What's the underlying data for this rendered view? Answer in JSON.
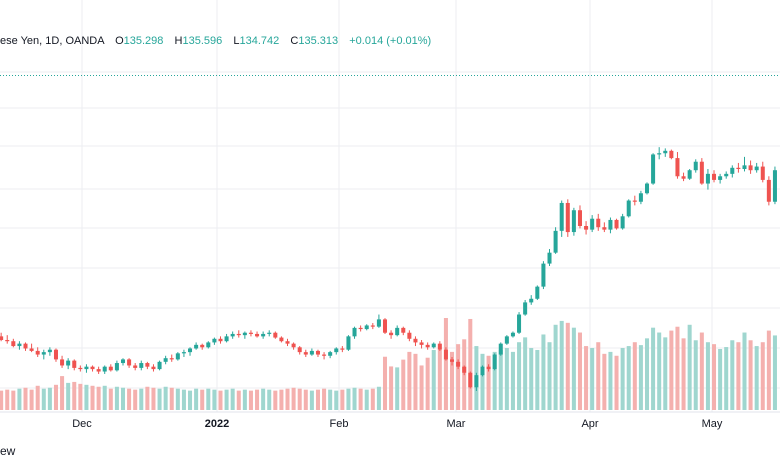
{
  "header": {
    "symbol": "ese Yen, 1D, OANDA",
    "open_label": "O",
    "open": "135.298",
    "high_label": "H",
    "high": "135.596",
    "low_label": "L",
    "low": "134.742",
    "close_label": "C",
    "close": "135.313",
    "change": "+0.014 (+0.01%)"
  },
  "footer": {
    "partial_text": "ew"
  },
  "colors": {
    "up": "#26a69a",
    "down": "#ef5350",
    "up_volume": "#9fd6cf",
    "down_volume": "#f4b0ae",
    "last_price_line": "#26a69a",
    "grid": "#eceef2"
  },
  "chart_data": {
    "type": "candlestick",
    "title": "",
    "symbol_partial": "ese Yen",
    "interval": "1D",
    "source": "OANDA",
    "x_tick_labels": [
      "Dec",
      "2022",
      "Feb",
      "Mar",
      "Apr",
      "May"
    ],
    "last_close": 135.313,
    "ylim": [
      113.5,
      137.0
    ],
    "grid": true,
    "series_ohlc_volume": [
      [
        114.0,
        114.2,
        113.6,
        113.8,
        22
      ],
      [
        113.8,
        114.1,
        113.4,
        113.5,
        20
      ],
      [
        113.5,
        113.9,
        113.2,
        113.4,
        21
      ],
      [
        113.4,
        113.6,
        112.9,
        113.0,
        20
      ],
      [
        113.0,
        113.4,
        112.7,
        113.2,
        22
      ],
      [
        113.2,
        113.3,
        112.6,
        112.8,
        23
      ],
      [
        112.8,
        113.2,
        112.5,
        112.6,
        21
      ],
      [
        112.6,
        112.9,
        112.1,
        112.3,
        25
      ],
      [
        112.3,
        112.7,
        111.9,
        112.5,
        22
      ],
      [
        112.5,
        112.9,
        112.2,
        112.7,
        23
      ],
      [
        112.7,
        112.8,
        111.7,
        111.9,
        26
      ],
      [
        111.9,
        112.2,
        111.2,
        111.4,
        35
      ],
      [
        111.4,
        112.0,
        111.1,
        111.8,
        28
      ],
      [
        111.8,
        111.9,
        111.0,
        111.2,
        29
      ],
      [
        111.2,
        111.4,
        110.9,
        111.1,
        27
      ],
      [
        111.1,
        111.5,
        110.8,
        111.3,
        26
      ],
      [
        111.3,
        111.4,
        110.9,
        111.1,
        25
      ],
      [
        111.1,
        111.3,
        110.7,
        110.9,
        24
      ],
      [
        110.9,
        111.4,
        110.7,
        111.3,
        25
      ],
      [
        111.3,
        111.5,
        110.9,
        111.0,
        22
      ],
      [
        111.0,
        111.8,
        110.9,
        111.6,
        24
      ],
      [
        111.6,
        112.0,
        111.4,
        111.9,
        23
      ],
      [
        111.9,
        112.0,
        111.2,
        111.4,
        22
      ],
      [
        111.4,
        111.6,
        111.0,
        111.2,
        21
      ],
      [
        111.2,
        111.8,
        111.0,
        111.6,
        22
      ],
      [
        111.6,
        111.7,
        111.1,
        111.3,
        24
      ],
      [
        111.3,
        111.5,
        110.9,
        111.1,
        23
      ],
      [
        111.1,
        111.8,
        111.0,
        111.7,
        22
      ],
      [
        111.7,
        112.2,
        111.5,
        112.0,
        24
      ],
      [
        112.0,
        112.3,
        111.7,
        111.9,
        23
      ],
      [
        111.9,
        112.5,
        111.8,
        112.4,
        22
      ],
      [
        112.4,
        112.7,
        112.1,
        112.5,
        21
      ],
      [
        112.5,
        112.9,
        112.2,
        112.8,
        20
      ],
      [
        112.8,
        113.3,
        112.7,
        113.1,
        22
      ],
      [
        113.1,
        113.2,
        112.7,
        112.9,
        21
      ],
      [
        112.9,
        113.4,
        112.8,
        113.3,
        22
      ],
      [
        113.3,
        113.7,
        113.1,
        113.6,
        21
      ],
      [
        113.6,
        113.8,
        113.2,
        113.4,
        20
      ],
      [
        113.4,
        114.0,
        113.3,
        113.8,
        21
      ],
      [
        113.8,
        114.2,
        113.6,
        114.0,
        22
      ],
      [
        114.0,
        114.3,
        113.7,
        113.9,
        20
      ],
      [
        113.9,
        114.2,
        113.6,
        114.1,
        21
      ],
      [
        114.1,
        114.3,
        113.8,
        114.0,
        20
      ],
      [
        114.0,
        114.2,
        113.7,
        113.8,
        21
      ],
      [
        113.8,
        114.2,
        113.6,
        114.0,
        22
      ],
      [
        114.0,
        114.3,
        113.8,
        114.1,
        21
      ],
      [
        114.1,
        114.2,
        113.6,
        113.7,
        20
      ],
      [
        113.7,
        113.8,
        113.3,
        113.4,
        21
      ],
      [
        113.4,
        113.6,
        113.0,
        113.2,
        22
      ],
      [
        113.2,
        113.3,
        112.7,
        112.9,
        23
      ],
      [
        112.9,
        113.0,
        112.3,
        112.5,
        22
      ],
      [
        112.5,
        112.7,
        112.1,
        112.3,
        21
      ],
      [
        112.3,
        112.8,
        112.2,
        112.6,
        20
      ],
      [
        112.6,
        112.7,
        112.1,
        112.3,
        21
      ],
      [
        112.3,
        112.5,
        111.9,
        112.2,
        22
      ],
      [
        112.2,
        112.6,
        112.0,
        112.5,
        21
      ],
      [
        112.5,
        112.9,
        112.3,
        112.8,
        20
      ],
      [
        112.8,
        113.0,
        112.5,
        112.7,
        21
      ],
      [
        112.7,
        113.9,
        112.6,
        113.8,
        22
      ],
      [
        113.8,
        114.6,
        113.6,
        114.5,
        23
      ],
      [
        114.5,
        114.7,
        114.2,
        114.4,
        22
      ],
      [
        114.4,
        114.8,
        114.3,
        114.7,
        21
      ],
      [
        114.7,
        114.9,
        114.4,
        114.6,
        22
      ],
      [
        114.6,
        115.6,
        114.5,
        115.2,
        24
      ],
      [
        115.2,
        115.3,
        114.0,
        114.1,
        55
      ],
      [
        114.1,
        114.3,
        113.6,
        113.9,
        45
      ],
      [
        113.9,
        114.7,
        113.8,
        114.5,
        44
      ],
      [
        114.5,
        114.6,
        113.9,
        114.1,
        52
      ],
      [
        114.1,
        114.3,
        113.4,
        113.6,
        60
      ],
      [
        113.6,
        113.8,
        113.0,
        113.3,
        58
      ],
      [
        113.3,
        113.5,
        112.8,
        113.1,
        46
      ],
      [
        113.1,
        113.3,
        112.7,
        112.9,
        54
      ],
      [
        112.9,
        113.3,
        112.8,
        113.2,
        62
      ],
      [
        113.2,
        113.4,
        112.6,
        112.7,
        62
      ],
      [
        112.7,
        112.9,
        111.8,
        111.9,
        95
      ],
      [
        111.9,
        112.1,
        111.4,
        111.7,
        60
      ],
      [
        111.7,
        111.9,
        111.1,
        111.3,
        68
      ],
      [
        111.3,
        111.4,
        110.6,
        110.8,
        73
      ],
      [
        110.8,
        110.9,
        109.5,
        109.6,
        94
      ],
      [
        109.6,
        110.8,
        109.3,
        110.6,
        66
      ],
      [
        110.6,
        111.4,
        110.5,
        111.3,
        58
      ],
      [
        111.3,
        111.5,
        110.9,
        111.1,
        56
      ],
      [
        111.1,
        112.4,
        111.0,
        112.3,
        60
      ],
      [
        112.3,
        113.3,
        112.2,
        113.2,
        62
      ],
      [
        113.2,
        113.9,
        113.1,
        113.8,
        64
      ],
      [
        113.8,
        114.2,
        113.7,
        114.1,
        60
      ],
      [
        114.1,
        115.8,
        114.0,
        115.6,
        70
      ],
      [
        115.6,
        116.8,
        115.5,
        116.6,
        75
      ],
      [
        116.6,
        117.2,
        116.4,
        116.9,
        64
      ],
      [
        116.9,
        118.0,
        116.8,
        117.9,
        62
      ],
      [
        117.9,
        120.0,
        117.7,
        119.8,
        78
      ],
      [
        119.8,
        121.0,
        119.6,
        120.7,
        70
      ],
      [
        120.7,
        122.8,
        120.6,
        122.5,
        88
      ],
      [
        122.5,
        125.0,
        122.0,
        124.8,
        92
      ],
      [
        124.8,
        125.1,
        122.0,
        122.4,
        90
      ],
      [
        122.4,
        124.4,
        122.1,
        124.2,
        85
      ],
      [
        124.2,
        124.6,
        122.7,
        122.9,
        80
      ],
      [
        122.9,
        123.3,
        122.2,
        122.6,
        66
      ],
      [
        122.6,
        123.8,
        122.4,
        123.5,
        64
      ],
      [
        123.5,
        123.9,
        122.5,
        122.8,
        70
      ],
      [
        122.8,
        123.2,
        122.4,
        122.6,
        58
      ],
      [
        122.6,
        123.6,
        122.3,
        123.4,
        60
      ],
      [
        123.4,
        123.5,
        122.6,
        122.7,
        56
      ],
      [
        122.7,
        123.9,
        122.6,
        123.7,
        64
      ],
      [
        123.7,
        125.1,
        123.6,
        125.0,
        66
      ],
      [
        125.0,
        125.4,
        124.6,
        124.9,
        70
      ],
      [
        124.9,
        125.8,
        124.7,
        125.6,
        67
      ],
      [
        125.6,
        126.5,
        125.5,
        126.4,
        74
      ],
      [
        126.4,
        128.9,
        126.3,
        128.8,
        85
      ],
      [
        128.8,
        129.4,
        128.4,
        128.9,
        80
      ],
      [
        128.9,
        129.3,
        128.6,
        129.1,
        75
      ],
      [
        129.1,
        129.2,
        128.4,
        128.5,
        82
      ],
      [
        128.5,
        129.0,
        126.8,
        127.0,
        86
      ],
      [
        127.0,
        127.3,
        126.6,
        126.8,
        74
      ],
      [
        126.8,
        127.6,
        126.7,
        127.5,
        88
      ],
      [
        127.5,
        128.4,
        127.3,
        128.2,
        72
      ],
      [
        128.2,
        128.5,
        126.3,
        126.4,
        80
      ],
      [
        126.4,
        127.6,
        125.9,
        127.2,
        70
      ],
      [
        127.2,
        127.5,
        126.5,
        126.7,
        68
      ],
      [
        126.7,
        127.2,
        126.4,
        127.0,
        63
      ],
      [
        127.0,
        127.4,
        126.8,
        127.2,
        65
      ],
      [
        127.2,
        127.9,
        126.9,
        127.7,
        72
      ],
      [
        127.7,
        128.1,
        127.3,
        127.6,
        70
      ],
      [
        127.6,
        128.6,
        127.4,
        127.9,
        80
      ],
      [
        127.9,
        128.3,
        127.2,
        127.5,
        72
      ],
      [
        127.5,
        128.1,
        127.3,
        127.8,
        66
      ],
      [
        127.8,
        128.2,
        126.5,
        126.7,
        70
      ],
      [
        126.7,
        127.0,
        124.6,
        124.9,
        82
      ],
      [
        124.9,
        127.8,
        124.7,
        127.5,
        77
      ]
    ]
  }
}
